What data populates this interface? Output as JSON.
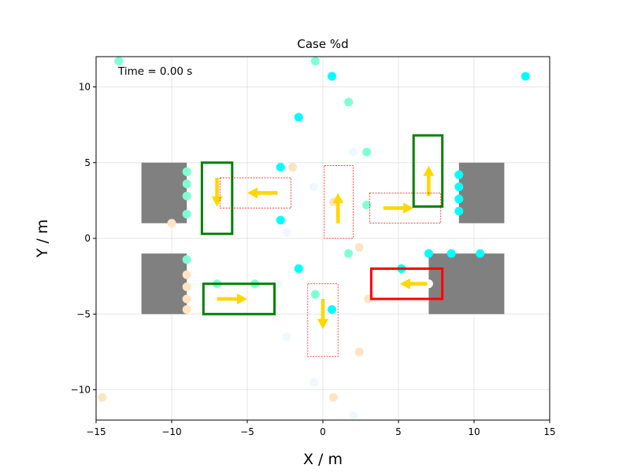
{
  "chart_data": {
    "type": "scatter",
    "title": "Case %d",
    "xlabel": "X / m",
    "ylabel": "Y / m",
    "xlim": [
      -15,
      15
    ],
    "ylim": [
      -12,
      12
    ],
    "xticks": [
      -15,
      -10,
      -5,
      0,
      5,
      10,
      15
    ],
    "yticks": [
      -10,
      -5,
      0,
      5,
      10
    ],
    "grid": true,
    "annotation": "Time = 0.00 s",
    "colors": {
      "obstacle": "#808080",
      "cyan": "#00ffff",
      "aquamarine": "#7fffd4",
      "bisque": "#ffe4c4",
      "aliceblue": "#f0f8ff",
      "white": "#ffffff",
      "green_box": "#008000",
      "red_box": "#ff0000",
      "dashed_box": "#ff0000",
      "arrow": "#ffd700"
    },
    "obstacles": [
      {
        "x0": -12,
        "y0": 1,
        "x1": -9,
        "y1": 5
      },
      {
        "x0": -12,
        "y0": -5,
        "x1": -9,
        "y1": -1
      },
      {
        "x0": 9,
        "y0": 1,
        "x1": 12,
        "y1": 5
      },
      {
        "x0": 7,
        "y0": -5,
        "x1": 12,
        "y1": -1
      }
    ],
    "points": [
      {
        "x": -13.5,
        "y": 11.7,
        "c": "aquamarine"
      },
      {
        "x": -0.5,
        "y": 11.7,
        "c": "aquamarine"
      },
      {
        "x": 0.6,
        "y": 10.7,
        "c": "cyan"
      },
      {
        "x": 13.4,
        "y": 10.7,
        "c": "cyan"
      },
      {
        "x": 1.7,
        "y": 9.0,
        "c": "aquamarine"
      },
      {
        "x": -1.6,
        "y": 8.0,
        "c": "cyan"
      },
      {
        "x": 2.0,
        "y": 5.7,
        "c": "aliceblue"
      },
      {
        "x": 2.9,
        "y": 5.7,
        "c": "aquamarine"
      },
      {
        "x": -2.8,
        "y": 4.7,
        "c": "cyan"
      },
      {
        "x": -2.0,
        "y": 4.7,
        "c": "bisque"
      },
      {
        "x": -0.6,
        "y": 3.4,
        "c": "aliceblue"
      },
      {
        "x": 0.7,
        "y": 2.4,
        "c": "bisque"
      },
      {
        "x": 2.9,
        "y": 2.2,
        "c": "aquamarine"
      },
      {
        "x": -2.8,
        "y": 1.2,
        "c": "cyan"
      },
      {
        "x": -2.4,
        "y": 0.4,
        "c": "aliceblue"
      },
      {
        "x": -10.0,
        "y": 1.0,
        "c": "bisque"
      },
      {
        "x": -9.0,
        "y": 4.4,
        "c": "aquamarine"
      },
      {
        "x": -9.0,
        "y": 3.6,
        "c": "aquamarine"
      },
      {
        "x": -9.0,
        "y": 2.8,
        "c": "aquamarine"
      },
      {
        "x": -9.0,
        "y": 1.6,
        "c": "aquamarine"
      },
      {
        "x": 9.0,
        "y": 4.2,
        "c": "cyan"
      },
      {
        "x": 9.0,
        "y": 3.4,
        "c": "cyan"
      },
      {
        "x": 9.0,
        "y": 2.6,
        "c": "cyan"
      },
      {
        "x": 9.0,
        "y": 1.8,
        "c": "cyan"
      },
      {
        "x": 2.4,
        "y": -0.6,
        "c": "bisque"
      },
      {
        "x": 1.7,
        "y": -1.0,
        "c": "aquamarine"
      },
      {
        "x": 7.0,
        "y": -1.0,
        "c": "cyan"
      },
      {
        "x": 8.5,
        "y": -1.0,
        "c": "cyan"
      },
      {
        "x": 10.4,
        "y": -1.0,
        "c": "cyan"
      },
      {
        "x": -1.6,
        "y": -2.0,
        "c": "cyan"
      },
      {
        "x": 5.2,
        "y": -2.0,
        "c": "cyan"
      },
      {
        "x": 7.0,
        "y": -3.0,
        "c": "white"
      },
      {
        "x": -9.0,
        "y": -1.4,
        "c": "aquamarine"
      },
      {
        "x": -9.0,
        "y": -2.4,
        "c": "bisque"
      },
      {
        "x": -9.0,
        "y": -3.2,
        "c": "bisque"
      },
      {
        "x": -9.0,
        "y": -4.0,
        "c": "bisque"
      },
      {
        "x": -9.0,
        "y": -4.7,
        "c": "bisque"
      },
      {
        "x": -7.0,
        "y": -3.0,
        "c": "aquamarine"
      },
      {
        "x": -4.5,
        "y": -3.0,
        "c": "aquamarine"
      },
      {
        "x": -3.0,
        "y": -3.0,
        "c": "aliceblue"
      },
      {
        "x": -0.5,
        "y": -3.7,
        "c": "aquamarine"
      },
      {
        "x": 3.0,
        "y": -4.0,
        "c": "bisque"
      },
      {
        "x": 0.6,
        "y": -4.7,
        "c": "cyan"
      },
      {
        "x": -2.4,
        "y": -6.5,
        "c": "aliceblue"
      },
      {
        "x": 2.4,
        "y": -7.5,
        "c": "bisque"
      },
      {
        "x": -0.6,
        "y": -9.5,
        "c": "aliceblue"
      },
      {
        "x": -14.6,
        "y": -10.5,
        "c": "bisque"
      },
      {
        "x": 0.7,
        "y": -10.5,
        "c": "bisque"
      },
      {
        "x": 2.0,
        "y": -11.7,
        "c": "aliceblue"
      }
    ],
    "vehicles": [
      {
        "box": "green",
        "x0": -8.0,
        "y0": 0.3,
        "x1": -6.0,
        "y1": 5.0,
        "arrow": [
          -7.0,
          4.0,
          -7.0,
          2.1
        ]
      },
      {
        "box": "green",
        "x0": 6.0,
        "y0": 2.1,
        "x1": 7.9,
        "y1": 6.8,
        "arrow": [
          7.0,
          2.8,
          7.0,
          4.8
        ]
      },
      {
        "box": "green",
        "x0": -7.9,
        "y0": -5.0,
        "x1": -3.2,
        "y1": -3.0,
        "arrow": [
          -7.0,
          -4.0,
          -5.0,
          -4.0
        ]
      },
      {
        "box": "red",
        "x0": 3.2,
        "y0": -4.0,
        "x1": 7.9,
        "y1": -2.0,
        "arrow": [
          6.9,
          -3.0,
          5.1,
          -3.0
        ]
      },
      {
        "box": "dashed",
        "x0": -6.8,
        "y0": 2.0,
        "x1": -2.1,
        "y1": 4.0,
        "arrow": [
          -3.0,
          3.0,
          -5.0,
          3.0
        ]
      },
      {
        "box": "dashed",
        "x0": 3.1,
        "y0": 1.0,
        "x1": 7.8,
        "y1": 3.0,
        "arrow": [
          4.0,
          2.0,
          6.0,
          2.0
        ]
      },
      {
        "box": "dashed",
        "x0": 0.1,
        "y0": 0.0,
        "x1": 2.0,
        "y1": 4.8,
        "arrow": [
          1.0,
          1.0,
          1.0,
          3.0
        ]
      },
      {
        "box": "dashed",
        "x0": -1.0,
        "y0": -7.8,
        "x1": 1.0,
        "y1": -3.0,
        "arrow": [
          0.0,
          -4.0,
          0.0,
          -6.0
        ]
      }
    ]
  }
}
